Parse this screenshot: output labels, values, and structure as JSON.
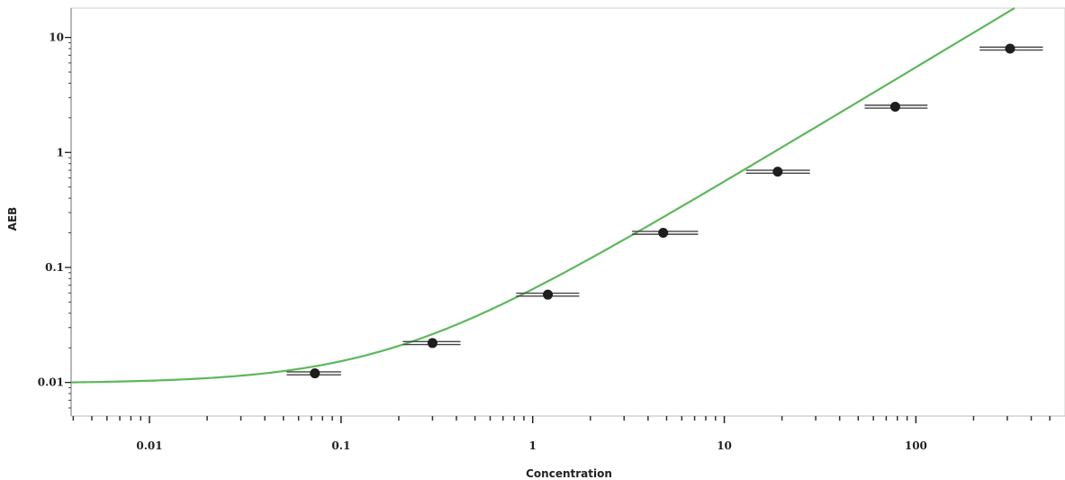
{
  "chart_data": {
    "type": "scatter",
    "xlabel": "Concentration",
    "ylabel": "AEB",
    "xscale": "log",
    "yscale": "log",
    "xlim": [
      0.0039,
      600
    ],
    "ylim": [
      0.0051,
      18
    ],
    "x_ticks": [
      {
        "value": 0.01,
        "label": "0.01"
      },
      {
        "value": 0.1,
        "label": "0.1"
      },
      {
        "value": 1,
        "label": "1"
      },
      {
        "value": 10,
        "label": "10"
      },
      {
        "value": 100,
        "label": "100"
      }
    ],
    "y_ticks": [
      {
        "value": 0.01,
        "label": "0.01"
      },
      {
        "value": 0.1,
        "label": "0.1"
      },
      {
        "value": 1,
        "label": "1"
      },
      {
        "value": 10,
        "label": "10"
      }
    ],
    "points": [
      {
        "x": 0.073,
        "y": 0.012,
        "xerr": [
          0.052,
          0.1
        ]
      },
      {
        "x": 0.3,
        "y": 0.022,
        "xerr": [
          0.21,
          0.42
        ]
      },
      {
        "x": 1.2,
        "y": 0.058,
        "xerr": [
          0.82,
          1.75
        ]
      },
      {
        "x": 4.8,
        "y": 0.2,
        "xerr": [
          3.3,
          7.3
        ]
      },
      {
        "x": 19,
        "y": 0.68,
        "xerr": [
          13,
          28
        ]
      },
      {
        "x": 78,
        "y": 2.5,
        "xerr": [
          54,
          115
        ]
      },
      {
        "x": 310,
        "y": 8.0,
        "xerr": [
          215,
          460
        ]
      }
    ],
    "fit_curve": {
      "baseline": 0.0098,
      "slope": 0.055,
      "color": "#5cb85c"
    },
    "marker_color": "#1e1e1e",
    "errorbar_color": "#444444",
    "grid": false
  }
}
